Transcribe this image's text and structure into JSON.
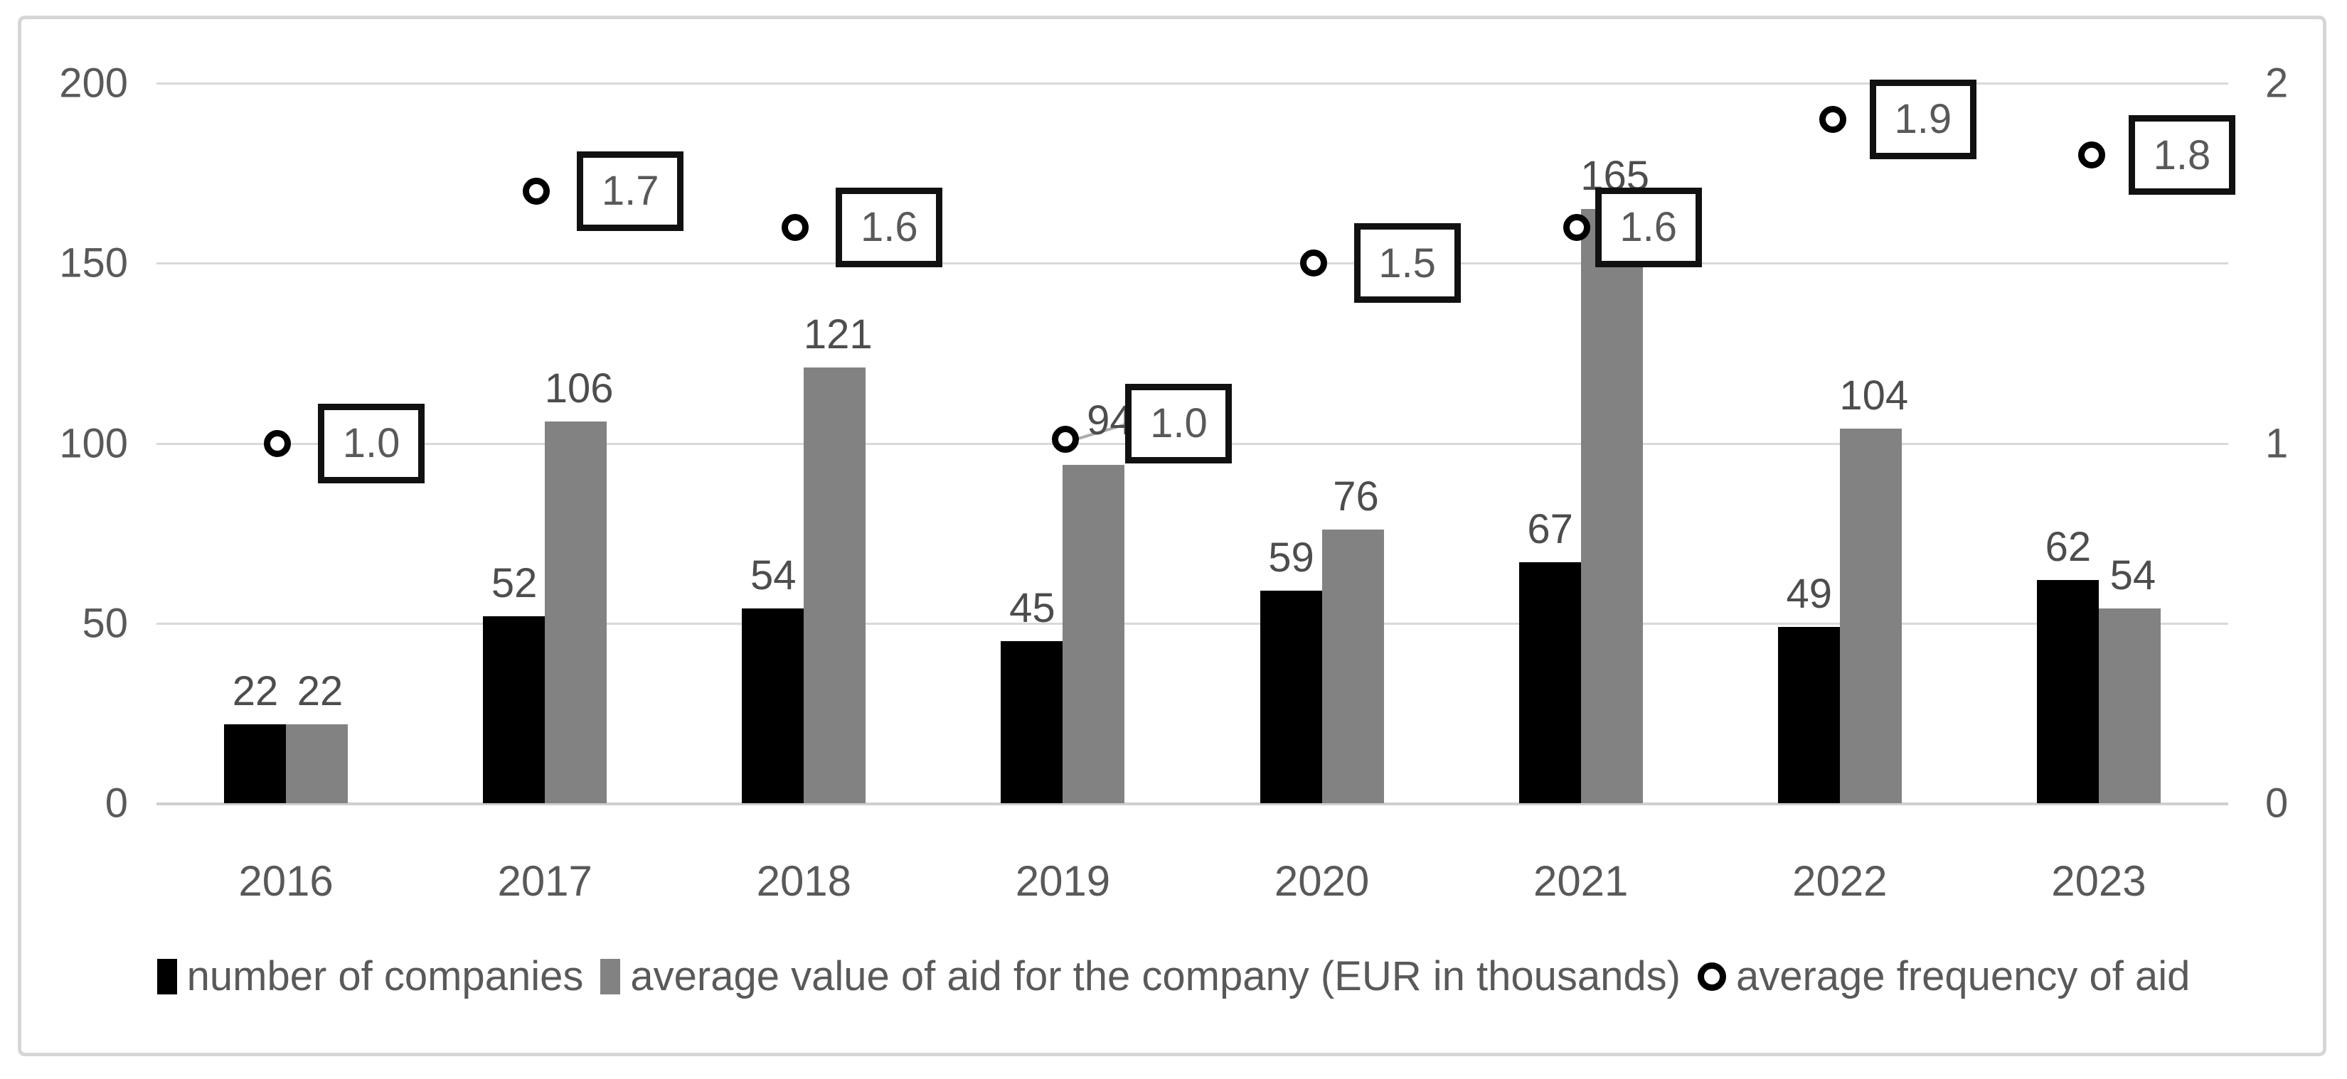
{
  "window": {
    "background": "#ffffff",
    "frame_border_color": "#d6d6d6"
  },
  "chart_data": {
    "type": "bar",
    "subtype": "combo-bar-scatter-dual-axis",
    "title": "",
    "categories": [
      "2016",
      "2017",
      "2018",
      "2019",
      "2020",
      "2021",
      "2022",
      "2023"
    ],
    "series": [
      {
        "name": "number of companies",
        "type": "bar",
        "axis": "left",
        "color": "#000000",
        "values": [
          22,
          52,
          54,
          45,
          59,
          67,
          49,
          62
        ],
        "data_labels": [
          "22",
          "52",
          "54",
          "45",
          "59",
          "67",
          "49",
          "62"
        ]
      },
      {
        "name": "average value of aid for the company (EUR in thousands)",
        "type": "bar",
        "axis": "left",
        "color": "#828282",
        "values": [
          22,
          106,
          121,
          94,
          76,
          165,
          104,
          54
        ],
        "data_labels": [
          "22",
          "106",
          "121",
          "94",
          "76",
          "165",
          "104",
          "54"
        ]
      },
      {
        "name": "average frequency of aid",
        "type": "scatter",
        "marker": "open-circle",
        "axis": "right",
        "color": "#000000",
        "values": [
          1.0,
          1.7,
          1.6,
          1.0,
          1.5,
          1.6,
          1.9,
          1.8
        ],
        "data_labels": [
          "1.0",
          "1.7",
          "1.6",
          "1.0",
          "1.5",
          "1.6",
          "1.9",
          "1.8"
        ],
        "data_labels_boxed": true
      }
    ],
    "left_axis": {
      "range": [
        0,
        200
      ],
      "ticks": [
        "0",
        "50",
        "100",
        "150",
        "200"
      ]
    },
    "right_axis": {
      "range": [
        0,
        2
      ],
      "ticks": [
        "0",
        "1",
        "2"
      ]
    },
    "gridlines": "horizontal",
    "grid_color": "#d9d9d9",
    "text_color": "#595959",
    "legend_position": "bottom"
  }
}
